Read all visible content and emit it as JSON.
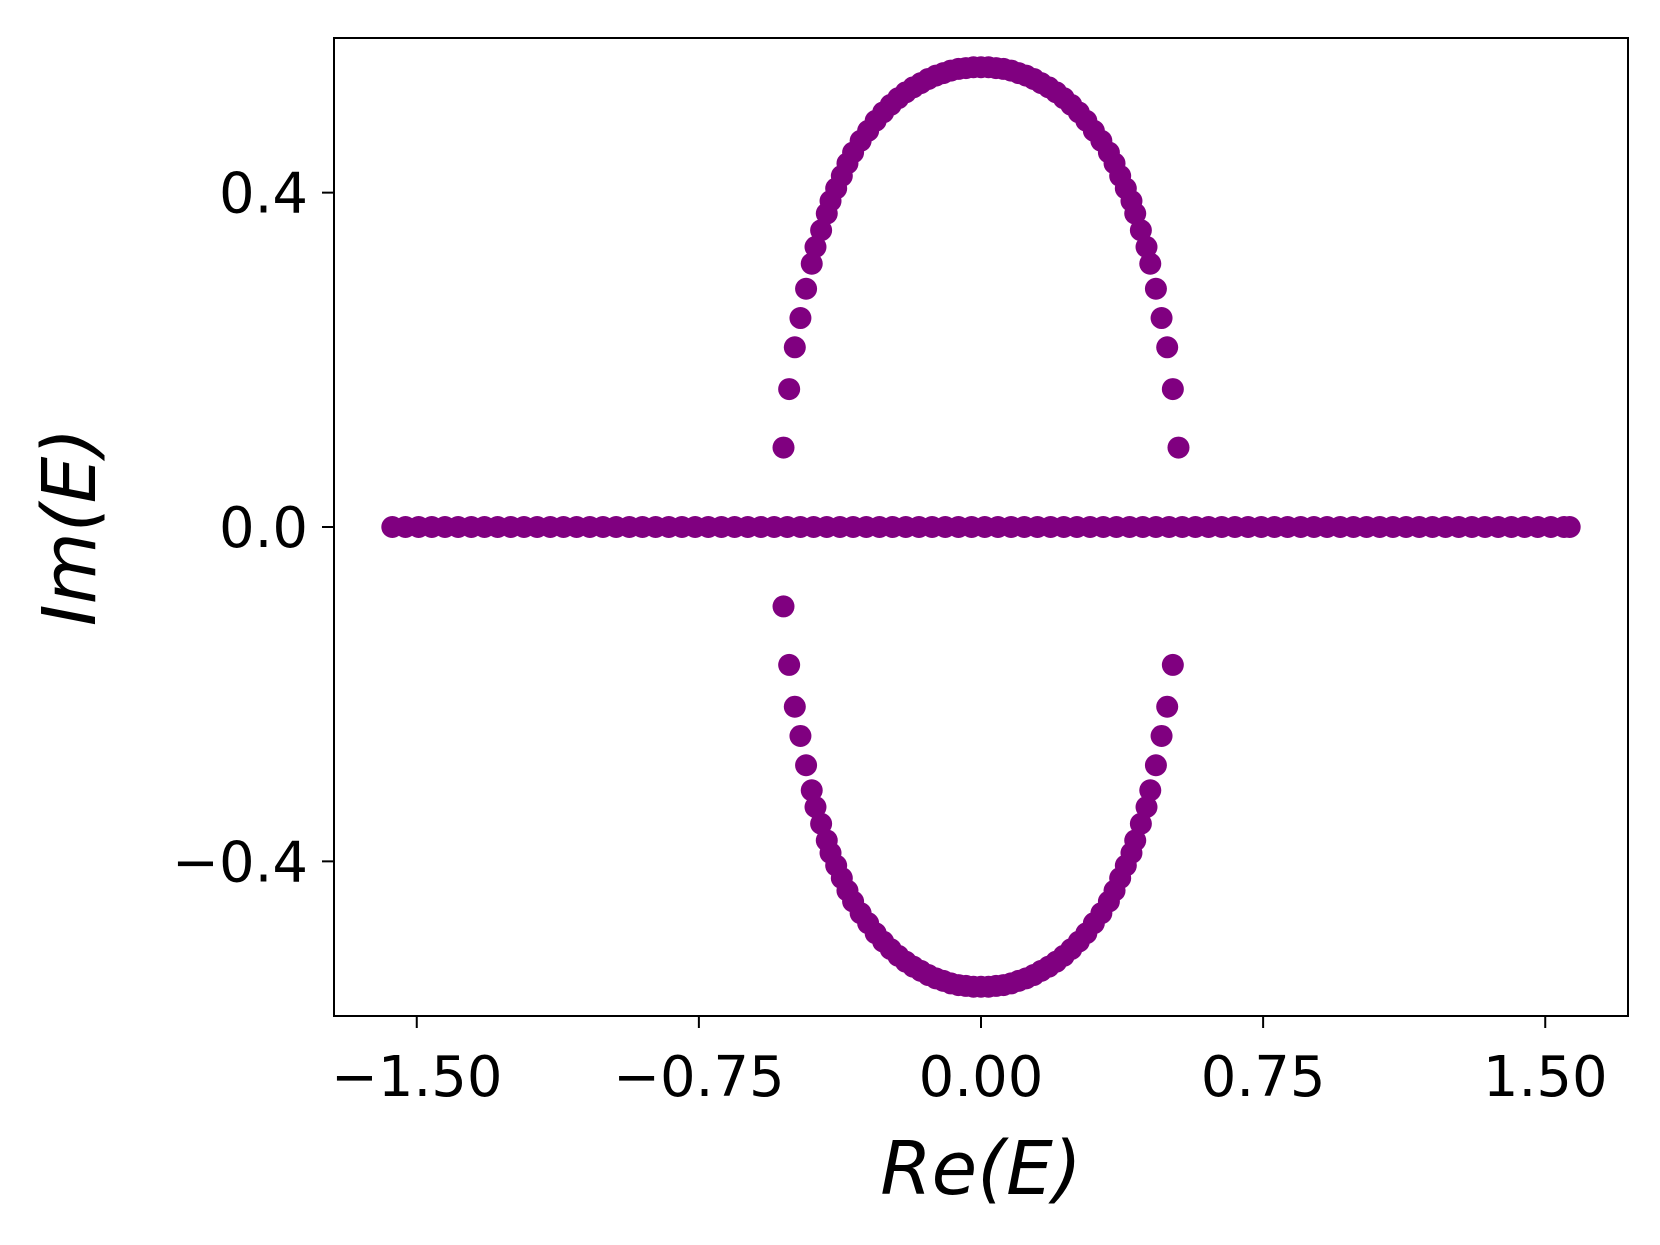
{
  "chart_data": {
    "type": "scatter",
    "title": "",
    "xlabel": "Re(E)",
    "ylabel": "Im(E)",
    "xlim": [
      -1.72,
      1.72
    ],
    "ylim": [
      -0.585,
      0.585
    ],
    "x_ticks": [
      {
        "value": -1.5,
        "label": "−1.50"
      },
      {
        "value": -0.75,
        "label": "−0.75"
      },
      {
        "value": 0.0,
        "label": "0.00"
      },
      {
        "value": 0.75,
        "label": "0.75"
      },
      {
        "value": 1.5,
        "label": "1.50"
      }
    ],
    "y_ticks": [
      {
        "value": 0.4,
        "label": "0.4"
      },
      {
        "value": 0.0,
        "label": "0.0"
      },
      {
        "value": -0.4,
        "label": "−0.4"
      }
    ],
    "grid": false,
    "legend": "none",
    "marker_color": "#800080",
    "series": [
      {
        "description_of_set": "real spectrum",
        "points": {
          "x": [
            -1.565,
            -1.53,
            -1.495,
            -1.46,
            -1.425,
            -1.39,
            -1.355,
            -1.32,
            -1.285,
            -1.25,
            -1.215,
            -1.18,
            -1.145,
            -1.11,
            -1.075,
            -1.04,
            -1.005,
            -0.97,
            -0.935,
            -0.9,
            -0.865,
            -0.83,
            -0.795,
            -0.76,
            -0.725,
            -0.69,
            -0.655,
            -0.62,
            -0.585,
            -0.55,
            -0.515,
            -0.48,
            -0.445,
            -0.41,
            -0.375,
            -0.34,
            -0.305,
            -0.27,
            -0.235,
            -0.2,
            -0.165,
            -0.13,
            -0.095,
            -0.06,
            -0.025,
            0.01,
            0.045,
            0.08,
            0.115,
            0.15,
            0.185,
            0.22,
            0.255,
            0.29,
            0.325,
            0.36,
            0.395,
            0.43,
            0.465,
            0.5,
            0.535,
            0.57,
            0.605,
            0.64,
            0.675,
            0.71,
            0.745,
            0.78,
            0.815,
            0.85,
            0.885,
            0.92,
            0.955,
            0.99,
            1.025,
            1.06,
            1.095,
            1.13,
            1.165,
            1.2,
            1.235,
            1.27,
            1.305,
            1.34,
            1.375,
            1.41,
            1.445,
            1.48,
            1.515,
            1.55,
            1.565
          ],
          "y": [
            0,
            0,
            0,
            0,
            0,
            0,
            0,
            0,
            0,
            0,
            0,
            0,
            0,
            0,
            0,
            0,
            0,
            0,
            0,
            0,
            0,
            0,
            0,
            0,
            0,
            0,
            0,
            0,
            0,
            0,
            0,
            0,
            0,
            0,
            0,
            0,
            0,
            0,
            0,
            0,
            0,
            0,
            0,
            0,
            0,
            0,
            0,
            0,
            0,
            0,
            0,
            0,
            0,
            0,
            0,
            0,
            0,
            0,
            0,
            0,
            0,
            0,
            0,
            0,
            0,
            0,
            0,
            0,
            0,
            0,
            0,
            0,
            0,
            0,
            0,
            0,
            0,
            0,
            0,
            0,
            0,
            0,
            0,
            0,
            0,
            0,
            0,
            0,
            0,
            0,
            0
          ]
        }
      },
      {
        "description_of_set": "complex loop",
        "points": {
          "x": [
            -0.525,
            -0.51,
            -0.51,
            -0.495,
            -0.495,
            -0.48,
            -0.48,
            -0.465,
            -0.465,
            -0.45,
            -0.45,
            -0.44,
            -0.44,
            -0.425,
            -0.425,
            -0.41,
            -0.41,
            -0.4,
            -0.4,
            -0.385,
            -0.385,
            -0.37,
            -0.37,
            -0.355,
            -0.355,
            -0.34,
            -0.34,
            -0.32,
            -0.32,
            -0.3,
            -0.3,
            -0.28,
            -0.28,
            -0.26,
            -0.26,
            -0.24,
            -0.24,
            -0.22,
            -0.22,
            -0.2,
            -0.2,
            -0.18,
            -0.18,
            -0.16,
            -0.16,
            -0.14,
            -0.14,
            -0.12,
            -0.12,
            -0.1,
            -0.1,
            -0.08,
            -0.08,
            -0.06,
            -0.06,
            -0.04,
            -0.04,
            -0.02,
            -0.02,
            0.0,
            0.0,
            0.02,
            0.02,
            0.04,
            0.04,
            0.06,
            0.06,
            0.08,
            0.08,
            0.1,
            0.1,
            0.12,
            0.12,
            0.14,
            0.14,
            0.16,
            0.16,
            0.18,
            0.18,
            0.2,
            0.2,
            0.22,
            0.22,
            0.24,
            0.24,
            0.26,
            0.26,
            0.28,
            0.28,
            0.3,
            0.3,
            0.32,
            0.32,
            0.34,
            0.34,
            0.355,
            0.355,
            0.37,
            0.37,
            0.385,
            0.385,
            0.4,
            0.4,
            0.41,
            0.41,
            0.425,
            0.425,
            0.44,
            0.44,
            0.45,
            0.45,
            0.465,
            0.465,
            0.48,
            0.48,
            0.495,
            0.495,
            0.51,
            0.51,
            0.525,
            -0.525
          ],
          "y": [
            0.095,
            0.165,
            -0.165,
            0.215,
            -0.215,
            0.25,
            -0.25,
            0.285,
            -0.285,
            0.315,
            -0.315,
            0.335,
            -0.335,
            0.355,
            -0.355,
            0.375,
            -0.375,
            0.39,
            -0.39,
            0.405,
            -0.405,
            0.42,
            -0.42,
            0.435,
            -0.435,
            0.448,
            -0.448,
            0.462,
            -0.462,
            0.474,
            -0.474,
            0.486,
            -0.486,
            0.496,
            -0.496,
            0.505,
            -0.505,
            0.513,
            -0.513,
            0.52,
            -0.52,
            0.526,
            -0.526,
            0.531,
            -0.531,
            0.536,
            -0.536,
            0.54,
            -0.54,
            0.543,
            -0.543,
            0.546,
            -0.546,
            0.548,
            -0.548,
            0.549,
            -0.549,
            0.55,
            -0.55,
            0.55,
            -0.55,
            0.55,
            -0.55,
            0.549,
            -0.549,
            0.548,
            -0.548,
            0.546,
            -0.546,
            0.543,
            -0.543,
            0.54,
            -0.54,
            0.536,
            -0.536,
            0.531,
            -0.531,
            0.526,
            -0.526,
            0.52,
            -0.52,
            0.513,
            -0.513,
            0.505,
            -0.505,
            0.496,
            -0.496,
            0.486,
            -0.486,
            0.474,
            -0.474,
            0.462,
            -0.462,
            0.448,
            -0.448,
            0.435,
            -0.435,
            0.42,
            -0.42,
            0.405,
            -0.405,
            0.39,
            -0.39,
            0.375,
            -0.375,
            0.355,
            -0.355,
            0.335,
            -0.335,
            0.315,
            -0.315,
            0.285,
            -0.285,
            0.25,
            -0.25,
            0.215,
            -0.215,
            0.165,
            -0.165,
            0.095,
            -0.095
          ]
        }
      }
    ]
  }
}
